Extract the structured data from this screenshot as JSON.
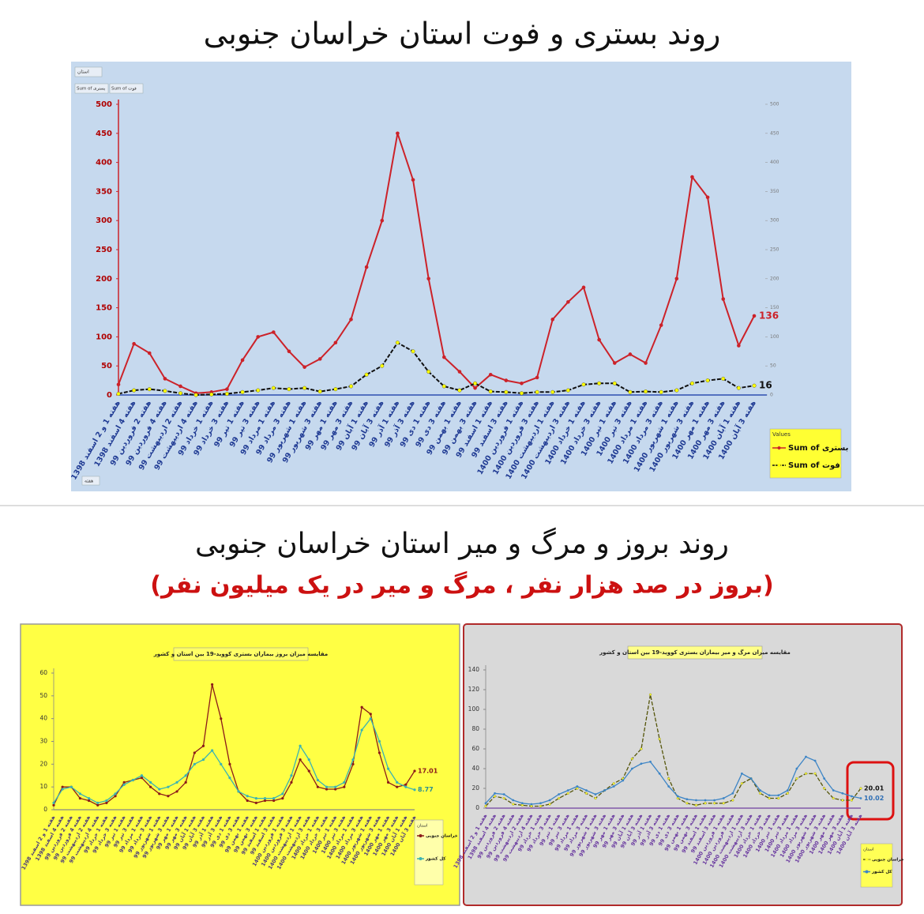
{
  "page": {
    "heading2": "روند بروز و مرگ و میر استان خراسان جنوبی",
    "subheading2": "(بروز در صد هزار نفر ، مرگ و میر در یک میلیون نفر)"
  },
  "chart_data": [
    {
      "type": "line",
      "title": "روند بستری و فوت استان خراسان جنوبی",
      "filter_label": "استان",
      "field_buttons": [
        "Sum of بستری",
        "Sum of فوت"
      ],
      "axis_field": "هفته",
      "legend_title": "Values",
      "categories": [
        "هفته 1 و 2 اسفند 1398",
        "هفته 4 اسفند 1398",
        "هفته 2 فروردین 99",
        "هفته 4 فروردین 99",
        "هفته 2 اردیبهشت 99",
        "هفته 4 اردیبهشت 99",
        "هفته 1 خرداد 99",
        "هفته 3 خرداد 99",
        "هفته 1 تیر 99",
        "هفته 3 تیر 99",
        "هفته 1 مرداد 99",
        "هفته 3 مرداد 99",
        "هفته 1 شهریور 99",
        "هفته 3 شهریور 99",
        "هفته 1 مهر 99",
        "هفته 3 مهر 99",
        "هفته 1 آبان 99",
        "هفته 3 آبان 99",
        "هفته 1 آذر 99",
        "هفته 3 آذر 99",
        "هفته 1 دی 99",
        "هفته 3 دی 99",
        "هفته 1 بهمن 99",
        "هفته 3 بهمن 99",
        "هفته 1 اسفند 99",
        "هفته 3 اسفند 99",
        "هفته 1 فروردین 1400",
        "هفته 3 فروردین 1400",
        "هفته 1 اردیبهشت 1400",
        "هفته 3 اردیبهشت 1400",
        "هفته 1 خرداد 1400",
        "هفته 3 خرداد 1400",
        "هفته 1 تیر 1400",
        "هفته 3 تیر 1400",
        "هفته 1 مرداد 1400",
        "هفته 3 مرداد 1400",
        "هفته 1 شهریور 1400",
        "هفته 3 شهریور 1400",
        "هفته 1 مهر 1400",
        "هفته 3 مهر 1400",
        "هفته 1 آبان 1400",
        "هفته 3 آبان 1400"
      ],
      "series": [
        {
          "name": "Sum of بستری",
          "color": "#cc2229",
          "marker": "#cc2229",
          "dash": false,
          "values": [
            18,
            88,
            72,
            28,
            15,
            3,
            5,
            10,
            60,
            100,
            108,
            75,
            48,
            62,
            90,
            130,
            220,
            300,
            450,
            370,
            200,
            65,
            40,
            12,
            35,
            25,
            20,
            30,
            130,
            160,
            185,
            95,
            55,
            70,
            55,
            120,
            200,
            375,
            340,
            165,
            85,
            136
          ]
        },
        {
          "name": "Sum of فوت",
          "color": "#111111",
          "marker": "#ffff00",
          "dash": true,
          "values": [
            2,
            8,
            10,
            7,
            3,
            0,
            1,
            2,
            5,
            8,
            12,
            10,
            12,
            6,
            10,
            15,
            35,
            50,
            90,
            75,
            40,
            15,
            8,
            20,
            6,
            5,
            3,
            5,
            5,
            8,
            18,
            20,
            20,
            5,
            6,
            5,
            8,
            20,
            25,
            28,
            12,
            16
          ]
        }
      ],
      "ylim": [
        0,
        500
      ],
      "yticks": [
        0,
        50,
        100,
        150,
        200,
        250,
        300,
        350,
        400,
        450,
        500
      ],
      "y2lim": [
        0,
        500
      ],
      "y2ticks": [
        0,
        50,
        100,
        150,
        200,
        250,
        300,
        350,
        400,
        450,
        500
      ],
      "grid": false
    },
    {
      "type": "line",
      "title": "مقایسه میزان بروز بیماران بستری کووید-19 بین استان و کشور",
      "legend_title": "استان",
      "categories": [
        "هفته 1 و 2 اسفند 1398",
        "هفته 4 اسفند 1398",
        "هفته 2 فروردین 99",
        "هفته 4 فروردین 99",
        "هفته 2 اردیبهشت 99",
        "هفته 4 اردیبهشت 99",
        "هفته 1 خرداد 99",
        "هفته 3 خرداد 99",
        "هفته 1 تیر 99",
        "هفته 3 تیر 99",
        "هفته 1 مرداد 99",
        "هفته 3 مرداد 99",
        "هفته 1 شهریور 99",
        "هفته 3 شهریور 99",
        "هفته 1 مهر 99",
        "هفته 3 مهر 99",
        "هفته 1 آبان 99",
        "هفته 3 آبان 99",
        "هفته 1 آذر 99",
        "هفته 3 آذر 99",
        "هفته 1 دی 99",
        "هفته 3 دی 99",
        "هفته 1 بهمن 99",
        "هفته 3 بهمن 99",
        "هفته 1 اسفند 99",
        "هفته 3 اسفند 99",
        "هفته 1 فروردین 1400",
        "هفته 3 فروردین 1400",
        "هفته 1 اردیبهشت 1400",
        "هفته 3 اردیبهشت 1400",
        "هفته 1 خرداد 1400",
        "هفته 3 خرداد 1400",
        "هفته 1 تیر 1400",
        "هفته 3 تیر 1400",
        "هفته 1 مرداد 1400",
        "هفته 3 مرداد 1400",
        "هفته 1 شهریور 1400",
        "هفته 3 شهریور 1400",
        "هفته 1 مهر 1400",
        "هفته 3 مهر 1400",
        "هفته 1 آبان 1400",
        "هفته 3 آبان 1400"
      ],
      "series": [
        {
          "name": "خراسان جنوبی",
          "color": "#8b1a1a",
          "marker": "#8b1a1a",
          "dash": false,
          "values": [
            2,
            10,
            10,
            5,
            4,
            2,
            3,
            6,
            12,
            13,
            14,
            10,
            7,
            6,
            8,
            12,
            25,
            28,
            55,
            40,
            20,
            8,
            4,
            3,
            4,
            4,
            5,
            12,
            22,
            17,
            10,
            9,
            9,
            10,
            20,
            45,
            42,
            25,
            12,
            10,
            11,
            17.01
          ]
        },
        {
          "name": "کل کشور",
          "color": "#3bb3b3",
          "marker": "#3bb3b3",
          "dash": false,
          "values": [
            3,
            9,
            10,
            7,
            5,
            3,
            4,
            7,
            11,
            13,
            15,
            12,
            9,
            10,
            12,
            15,
            20,
            22,
            26,
            20,
            14,
            8,
            6,
            5,
            5,
            5,
            7,
            15,
            28,
            22,
            13,
            10,
            10,
            12,
            22,
            35,
            40,
            30,
            18,
            12,
            10,
            8.77
          ]
        }
      ],
      "ylim": [
        0,
        60
      ],
      "yticks": [
        0,
        10,
        20,
        30,
        40,
        50,
        60
      ],
      "grid": false
    },
    {
      "type": "line",
      "title": "مقایسه میزان مرگ و میر بیماران بستری کووید-19 بین استان و کشور",
      "legend_title": "استان",
      "categories": [
        "هفته 1 و 2 اسفند 1398",
        "هفته 4 اسفند 1398",
        "هفته 2 فروردین 99",
        "هفته 4 فروردین 99",
        "هفته 2 اردیبهشت 99",
        "هفته 4 اردیبهشت 99",
        "هفته 1 خرداد 99",
        "هفته 3 خرداد 99",
        "هفته 1 تیر 99",
        "هفته 3 تیر 99",
        "هفته 1 مرداد 99",
        "هفته 3 مرداد 99",
        "هفته 1 شهریور 99",
        "هفته 3 شهریور 99",
        "هفته 1 مهر 99",
        "هفته 3 مهر 99",
        "هفته 1 آبان 99",
        "هفته 3 آبان 99",
        "هفته 1 آذر 99",
        "هفته 3 آذر 99",
        "هفته 1 دی 99",
        "هفته 3 دی 99",
        "هفته 1 بهمن 99",
        "هفته 3 بهمن 99",
        "هفته 1 اسفند 99",
        "هفته 3 اسفند 99",
        "هفته 1 فروردین 1400",
        "هفته 3 فروردین 1400",
        "هفته 1 اردیبهشت 1400",
        "هفته 3 اردیبهشت 1400",
        "هفته 1 خرداد 1400",
        "هفته 3 خرداد 1400",
        "هفته 1 تیر 1400",
        "هفته 3 تیر 1400",
        "هفته 1 مرداد 1400",
        "هفته 3 مرداد 1400",
        "هفته 1 شهریور 1400",
        "هفته 3 شهریور 1400",
        "هفته 1 مهر 1400",
        "هفته 3 مهر 1400",
        "هفته 1 آبان 1400",
        "هفته 3 آبان 1400"
      ],
      "series": [
        {
          "name": "خراسان جنوبی",
          "color": "#55550a",
          "marker": "#ffff33",
          "dash": true,
          "values": [
            2,
            12,
            10,
            4,
            3,
            2,
            2,
            4,
            10,
            15,
            20,
            15,
            10,
            18,
            25,
            30,
            50,
            60,
            115,
            70,
            30,
            10,
            5,
            3,
            5,
            5,
            5,
            8,
            25,
            30,
            15,
            10,
            10,
            15,
            30,
            35,
            35,
            20,
            10,
            8,
            8,
            20.01
          ]
        },
        {
          "name": "کل کشور",
          "color": "#3d85c6",
          "marker": "#3d85c6",
          "dash": false,
          "values": [
            5,
            15,
            14,
            8,
            5,
            4,
            5,
            8,
            14,
            18,
            22,
            18,
            14,
            18,
            22,
            28,
            40,
            45,
            47,
            35,
            22,
            12,
            9,
            8,
            8,
            8,
            10,
            15,
            35,
            30,
            18,
            13,
            13,
            18,
            40,
            52,
            48,
            30,
            18,
            15,
            12,
            10.02
          ]
        }
      ],
      "ylim": [
        0,
        140
      ],
      "yticks": [
        0,
        20,
        40,
        60,
        80,
        100,
        120,
        140
      ],
      "grid": false
    }
  ]
}
